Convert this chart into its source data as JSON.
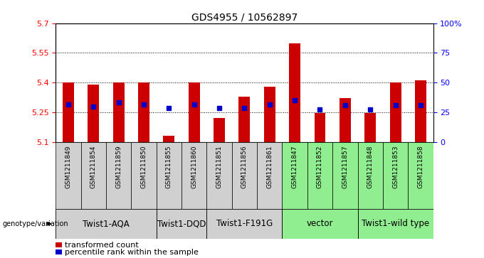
{
  "title": "GDS4955 / 10562897",
  "samples": [
    "GSM1211849",
    "GSM1211854",
    "GSM1211859",
    "GSM1211850",
    "GSM1211855",
    "GSM1211860",
    "GSM1211851",
    "GSM1211856",
    "GSM1211861",
    "GSM1211847",
    "GSM1211852",
    "GSM1211857",
    "GSM1211848",
    "GSM1211853",
    "GSM1211858"
  ],
  "bar_values": [
    5.4,
    5.39,
    5.4,
    5.4,
    5.13,
    5.4,
    5.22,
    5.33,
    5.38,
    5.6,
    5.245,
    5.32,
    5.245,
    5.4,
    5.41
  ],
  "percentile_values": [
    5.29,
    5.28,
    5.3,
    5.29,
    5.27,
    5.29,
    5.27,
    5.27,
    5.29,
    5.31,
    5.265,
    5.285,
    5.265,
    5.285,
    5.285
  ],
  "ylim_left": [
    5.1,
    5.7
  ],
  "ylim_right": [
    0,
    100
  ],
  "yticks_left": [
    5.1,
    5.25,
    5.4,
    5.55,
    5.7
  ],
  "yticks_right": [
    0,
    25,
    50,
    75,
    100
  ],
  "ytick_labels_left": [
    "5.1",
    "5.25",
    "5.4",
    "5.55",
    "5.7"
  ],
  "ytick_labels_right": [
    "0",
    "25",
    "50",
    "75",
    "100%"
  ],
  "groups": [
    {
      "label": "Twist1-AQA",
      "indices": [
        0,
        1,
        2,
        3
      ],
      "color": "#d0d0d0"
    },
    {
      "label": "Twist1-DQD",
      "indices": [
        4,
        5
      ],
      "color": "#d0d0d0"
    },
    {
      "label": "Twist1-F191G",
      "indices": [
        6,
        7,
        8
      ],
      "color": "#d0d0d0"
    },
    {
      "label": "vector",
      "indices": [
        9,
        10,
        11
      ],
      "color": "#90ee90"
    },
    {
      "label": "Twist1-wild type",
      "indices": [
        12,
        13,
        14
      ],
      "color": "#90ee90"
    }
  ],
  "bar_color": "#cc0000",
  "percentile_color": "#0000cc",
  "baseline": 5.1,
  "title_fontsize": 10,
  "tick_fontsize": 8,
  "sample_tick_fontsize": 6.5,
  "group_label_fontsize": 8.5,
  "legend_fontsize": 8
}
